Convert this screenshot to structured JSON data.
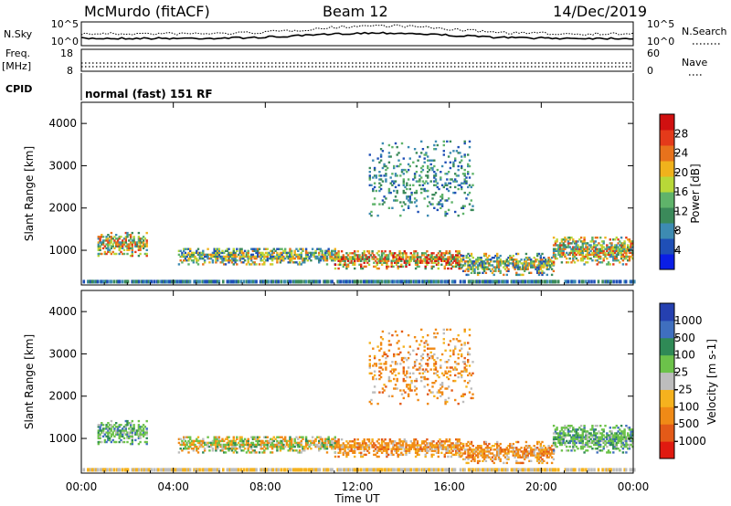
{
  "header": {
    "station": "McMurdo (fitACF)",
    "beam": "Beam 12",
    "date": "14/Dec/2019"
  },
  "noise_panel": {
    "left_label": "N.Sky",
    "right_label": "N.Search",
    "left_ticks": [
      "10^5",
      "10^0"
    ],
    "right_ticks": [
      "10^5",
      "10^0"
    ]
  },
  "freq_panel": {
    "left_label_1": "Freq.",
    "left_label_2": "[MHz]",
    "left_ticks": [
      "18",
      "8"
    ],
    "right_label": "Nave",
    "right_ticks": [
      "60",
      "0"
    ]
  },
  "cpid": {
    "label": "CPID",
    "mode": "normal (fast) 151 RF"
  },
  "time_axis": {
    "label": "Time UT",
    "ticks": [
      "00:00",
      "04:00",
      "08:00",
      "12:00",
      "16:00",
      "20:00",
      "00:00"
    ]
  },
  "range_axis": {
    "label": "Slant Range [km]",
    "ticks": [
      "1000",
      "2000",
      "3000",
      "4000"
    ]
  },
  "power_scale": {
    "label": "Power [dB]",
    "ticks": [
      "4",
      "8",
      "12",
      "16",
      "20",
      "24",
      "28"
    ],
    "colors": [
      "#0a1ee6",
      "#1f4fb6",
      "#3d8bb2",
      "#3b8a5a",
      "#5fb36a",
      "#b8d838",
      "#f0b21c",
      "#e8721c",
      "#e43a1a",
      "#d01010"
    ]
  },
  "velocity_scale": {
    "label": "Velocity [m s-1]",
    "ticks": [
      "1000",
      "500",
      "100",
      "25",
      "-25",
      "-100",
      "-500",
      "-1000"
    ],
    "colors": [
      "#2540b0",
      "#3f6fbf",
      "#2f8a56",
      "#6cc24a",
      "#bdbdbd",
      "#f5b21e",
      "#f08a16",
      "#e35a18",
      "#e01a10"
    ]
  },
  "chart_data": [
    {
      "type": "heatmap",
      "name": "Power",
      "x_range_hours": [
        0,
        24
      ],
      "y_range_km": [
        180,
        4500
      ],
      "colorbar_range_db": [
        0,
        32
      ],
      "echo_regions": [
        {
          "t": [
            0.7,
            2.8
          ],
          "r": [
            850,
            1400
          ],
          "level": "high"
        },
        {
          "t": [
            4.2,
            11.0
          ],
          "r": [
            650,
            1050
          ],
          "level": "mid"
        },
        {
          "t": [
            11.0,
            16.5
          ],
          "r": [
            550,
            1000
          ],
          "level": "max"
        },
        {
          "t": [
            16.5,
            20.5
          ],
          "r": [
            400,
            900
          ],
          "level": "mid"
        },
        {
          "t": [
            20.5,
            24.0
          ],
          "r": [
            650,
            1300
          ],
          "level": "high"
        },
        {
          "t": [
            12.5,
            17.0
          ],
          "r": [
            1800,
            3600
          ],
          "level": "low"
        }
      ]
    },
    {
      "type": "heatmap",
      "name": "Velocity",
      "x_range_hours": [
        0,
        24
      ],
      "y_range_km": [
        180,
        4500
      ],
      "colorbar_range": [
        -1000,
        1000
      ],
      "echo_regions": [
        {
          "t": [
            0.7,
            2.8
          ],
          "r": [
            850,
            1400
          ],
          "sign": "positive"
        },
        {
          "t": [
            4.2,
            11.0
          ],
          "r": [
            650,
            1050
          ],
          "sign": "mixed"
        },
        {
          "t": [
            11.0,
            16.5
          ],
          "r": [
            550,
            1000
          ],
          "sign": "negative"
        },
        {
          "t": [
            16.5,
            20.5
          ],
          "r": [
            400,
            900
          ],
          "sign": "negative"
        },
        {
          "t": [
            20.5,
            24.0
          ],
          "r": [
            650,
            1300
          ],
          "sign": "positive"
        },
        {
          "t": [
            12.5,
            17.0
          ],
          "r": [
            1800,
            3600
          ],
          "sign": "negative"
        }
      ]
    }
  ]
}
